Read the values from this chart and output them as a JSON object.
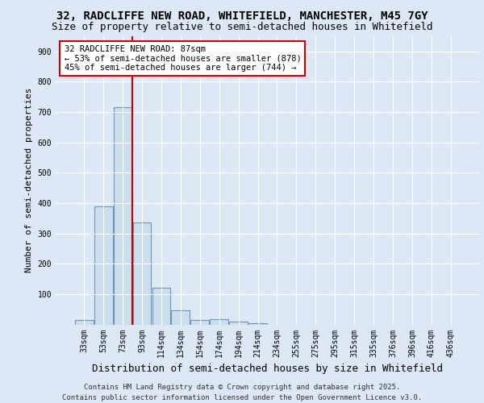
{
  "title_line1": "32, RADCLIFFE NEW ROAD, WHITEFIELD, MANCHESTER, M45 7GY",
  "title_line2": "Size of property relative to semi-detached houses in Whitefield",
  "xlabel": "Distribution of semi-detached houses by size in Whitefield",
  "ylabel": "Number of semi-detached properties",
  "categories": [
    "33sqm",
    "53sqm",
    "73sqm",
    "93sqm",
    "114sqm",
    "134sqm",
    "154sqm",
    "174sqm",
    "194sqm",
    "214sqm",
    "234sqm",
    "255sqm",
    "275sqm",
    "295sqm",
    "315sqm",
    "335sqm",
    "376sqm",
    "396sqm",
    "416sqm",
    "436sqm"
  ],
  "values": [
    15,
    390,
    715,
    335,
    120,
    47,
    15,
    17,
    10,
    5,
    0,
    0,
    0,
    0,
    0,
    0,
    0,
    0,
    0,
    0
  ],
  "bar_color": "#ccdded",
  "bar_edge_color": "#6699bb",
  "vline_color": "#cc0000",
  "vline_x": 2.5,
  "annotation_text": "32 RADCLIFFE NEW ROAD: 87sqm\n← 53% of semi-detached houses are smaller (878)\n45% of semi-detached houses are larger (744) →",
  "annotation_box_facecolor": "#ffffff",
  "annotation_box_edgecolor": "#cc0000",
  "ylim": [
    0,
    950
  ],
  "yticks": [
    0,
    100,
    200,
    300,
    400,
    500,
    600,
    700,
    800,
    900
  ],
  "bg_color": "#dce8f5",
  "footer_line1": "Contains HM Land Registry data © Crown copyright and database right 2025.",
  "footer_line2": "Contains public sector information licensed under the Open Government Licence v3.0.",
  "title_fontsize": 10,
  "subtitle_fontsize": 9,
  "tick_fontsize": 7,
  "ylabel_fontsize": 8,
  "xlabel_fontsize": 9,
  "annotation_fontsize": 7.5,
  "footer_fontsize": 6.5
}
